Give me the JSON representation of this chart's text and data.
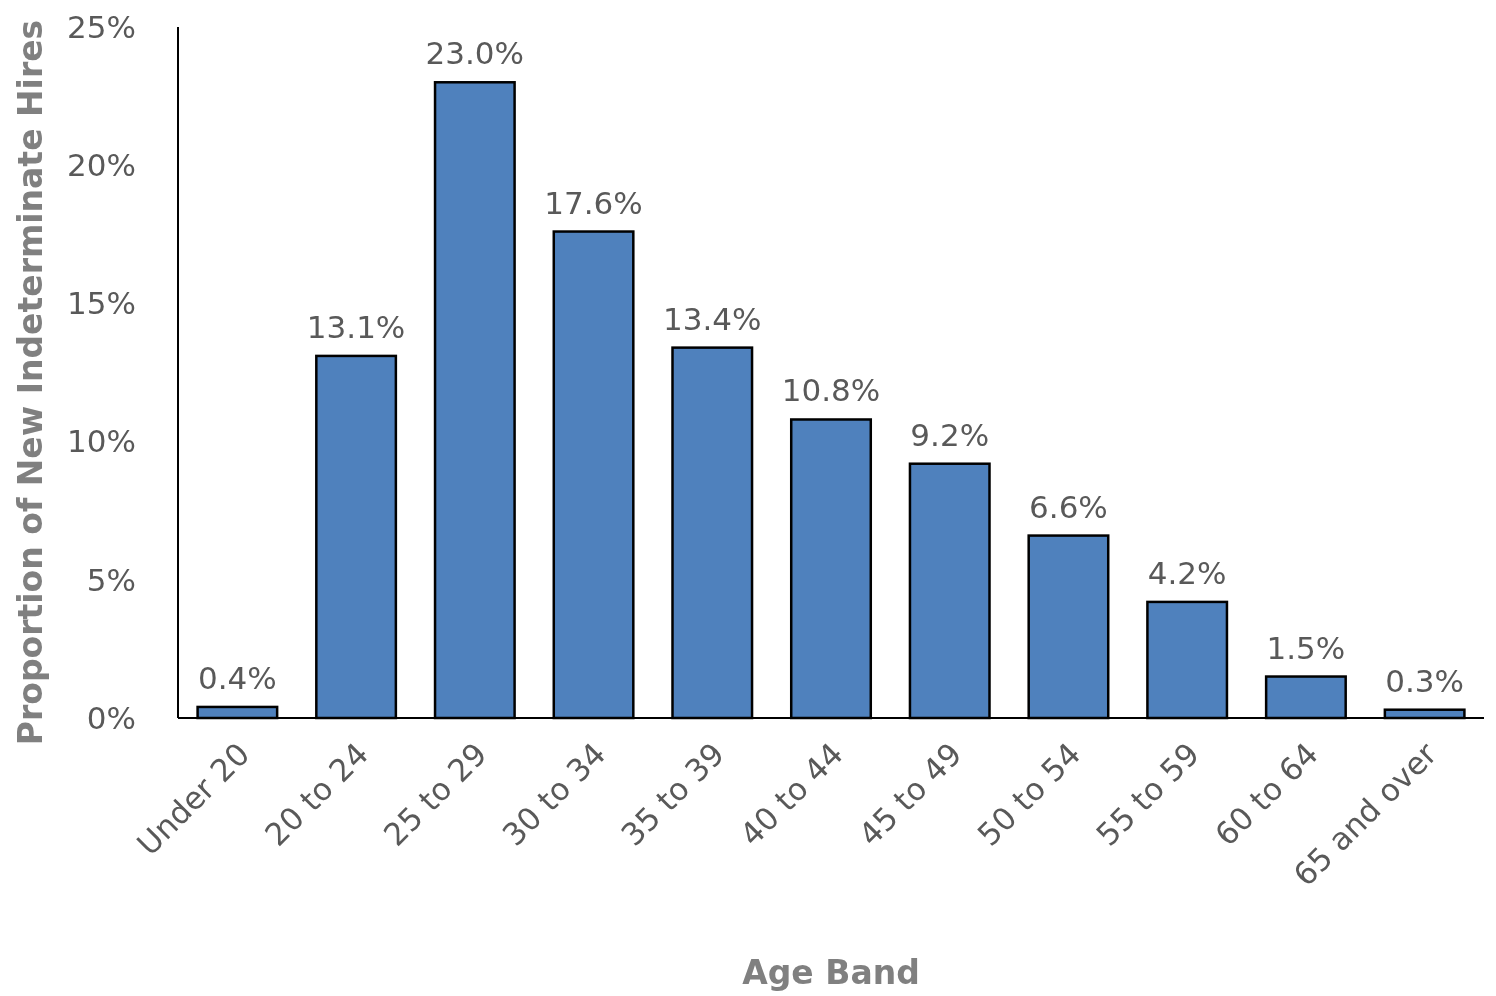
{
  "chart_data": {
    "type": "bar",
    "xlabel": "Age Band",
    "ylabel": "Proportion of New Indeterminate Hires",
    "categories": [
      "Under 20",
      "20 to 24",
      "25 to 29",
      "30 to 34",
      "35 to 39",
      "40 to 44",
      "45 to 49",
      "50 to 54",
      "55 to 59",
      "60 to 64",
      "65 and over"
    ],
    "values": [
      0.4,
      13.1,
      23.0,
      17.6,
      13.4,
      10.8,
      9.2,
      6.6,
      4.2,
      1.5,
      0.3
    ],
    "value_labels": [
      "0.4%",
      "13.1%",
      "23.0%",
      "17.6%",
      "13.4%",
      "10.8%",
      "9.2%",
      "6.6%",
      "4.2%",
      "1.5%",
      "0.3%"
    ],
    "color": "#4f81bd",
    "ylim": [
      0,
      25
    ],
    "yticks": [
      {
        "value": 0,
        "label": "0%"
      },
      {
        "value": 5,
        "label": "5%"
      },
      {
        "value": 10,
        "label": "10%"
      },
      {
        "value": 15,
        "label": "15%"
      },
      {
        "value": 20,
        "label": "20%"
      },
      {
        "value": 25,
        "label": "25%"
      }
    ],
    "grid": false
  }
}
